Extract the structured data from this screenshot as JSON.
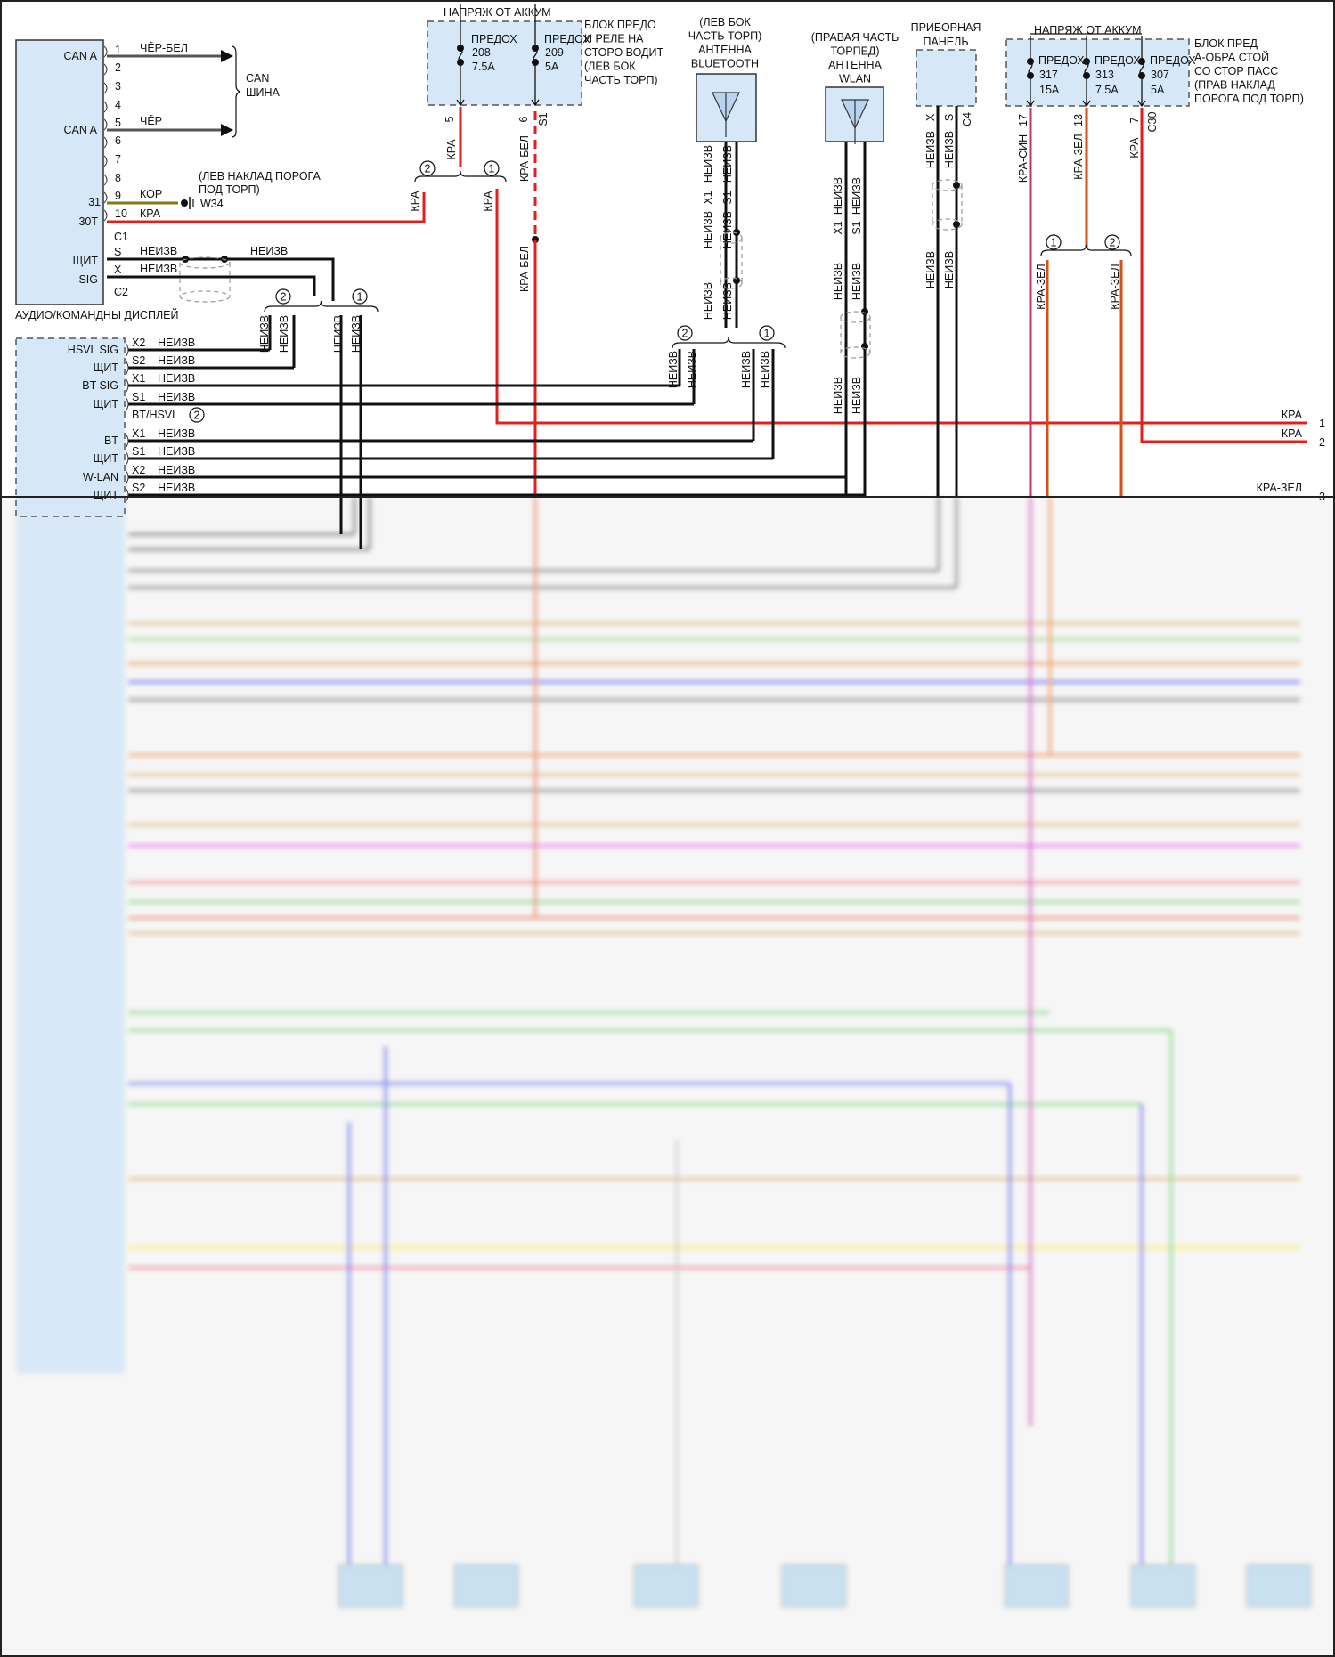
{
  "display_module": {
    "title": "АУДИО/КОМАНДНЫ ДИСПЛЕЙ",
    "pin_labels": [
      "CAN A",
      "CAN A",
      "31",
      "30T",
      "C1",
      "ЩИТ",
      "SIG",
      "C2"
    ],
    "pin_numbers": [
      "1",
      "2",
      "3",
      "4",
      "5",
      "6",
      "7",
      "8",
      "9",
      "10",
      "S",
      "X"
    ],
    "wires": [
      "ЧЁР-БЕЛ",
      "ЧЁР",
      "КОР",
      "КРА",
      "НЕИЗВ",
      "НЕИЗВ",
      "НЕИЗВ"
    ]
  },
  "can_bus": {
    "line1": "CAN",
    "line2": "ШИНА"
  },
  "ground": {
    "location": [
      "(ЛЕВ НАКЛАД ПОРОГА",
      "ПОД ТОРП)"
    ],
    "id": "W34"
  },
  "splice_labels": [
    "1",
    "2"
  ],
  "fuse_block_left": {
    "title": "НАПРЯЖ ОТ АККУМ",
    "fuses": [
      {
        "label": "ПРЕДОХ",
        "number": "208",
        "rating": "7.5A"
      },
      {
        "label": "ПРЕДОХ",
        "number": "209",
        "rating": "5A"
      }
    ],
    "description": [
      "БЛОК ПРЕДО",
      "И РЕЛЕ НА",
      "СТОРО ВОДИТ",
      "(ЛЕВ БОК",
      "ЧАСТЬ ТОРП)"
    ],
    "pins": [
      "5",
      "6",
      "S1"
    ],
    "wires": [
      "КРА",
      "КРА-БЕЛ",
      "КРА-БЕЛ",
      "КРА",
      "КРА"
    ]
  },
  "splice_c2_wires": [
    "НЕИЗВ",
    "НЕИЗВ",
    "НЕИЗВ",
    "НЕИЗВ"
  ],
  "lower_module": {
    "rows": [
      {
        "pin": "HSVL SIG",
        "term": "X2",
        "wire": "НЕИЗВ"
      },
      {
        "pin": "ЩИТ",
        "term": "S2",
        "wire": "НЕИЗВ"
      },
      {
        "pin": "BT SIG",
        "term": "X1",
        "wire": "НЕИЗВ"
      },
      {
        "pin": "ЩИТ",
        "term": "S1",
        "wire": "НЕИЗВ"
      },
      {
        "pin": "",
        "term": "BT/HSVL",
        "wire": ""
      },
      {
        "pin": "BT",
        "term": "X1",
        "wire": "НЕИЗВ"
      },
      {
        "pin": "ЩИТ",
        "term": "S1",
        "wire": "НЕИЗВ"
      },
      {
        "pin": "W-LAN",
        "term": "X2",
        "wire": "НЕИЗВ"
      },
      {
        "pin": "ЩИТ",
        "term": "S2",
        "wire": "НЕИЗВ"
      }
    ]
  },
  "bt_antenna": {
    "title": [
      "(ЛЕВ БОК",
      "ЧАСТЬ ТОРП)",
      "АНТЕННА",
      "BLUETOOTH"
    ],
    "terms": [
      "X1",
      "S1"
    ],
    "wire": "НЕИЗВ",
    "splice_wires": [
      "НЕИЗВ",
      "НЕИЗВ",
      "НЕИЗВ",
      "НЕИЗВ"
    ]
  },
  "wlan_antenna": {
    "title": [
      "(ПРАВАЯ ЧАСТЬ",
      "ТОРПЕД)",
      "АНТЕННА",
      "WLAN"
    ],
    "terms": [
      "X1",
      "S1"
    ],
    "wire": "НЕИЗВ"
  },
  "instrument_panel": {
    "title": [
      "ПРИБОРНАЯ",
      "ПАНЕЛЬ"
    ],
    "terms": [
      "X",
      "S"
    ],
    "connector": "C4",
    "wire": "НЕИЗВ"
  },
  "fuse_block_right": {
    "title": "НАПРЯЖ ОТ АККУМ",
    "fuses": [
      {
        "label": "ПРЕДОХ",
        "number": "317",
        "rating": "15A"
      },
      {
        "label": "ПРЕДОХ",
        "number": "313",
        "rating": "7.5A"
      },
      {
        "label": "ПРЕДОХ",
        "number": "307",
        "rating": "5A"
      }
    ],
    "description": [
      "БЛОК ПРЕД",
      "А-ОБРА СТОЙ",
      "СО СТОР ПАСС",
      "(ПРАВ НАКЛАД",
      "ПОРОГА ПОД ТОРП)"
    ],
    "pins": [
      "17",
      "13",
      "7"
    ],
    "connector": "C30",
    "wires": [
      "КРА-СИН",
      "КРА-ЗЕЛ",
      "КРА",
      "КРА-ЗЕЛ",
      "КРА-ЗЕЛ"
    ]
  },
  "right_edge": [
    {
      "wire": "КРА",
      "pin": "1"
    },
    {
      "wire": "КРА",
      "pin": "2"
    },
    {
      "wire": "КРА-ЗЕЛ",
      "pin": "3"
    }
  ],
  "colors": {
    "module_fill": "#d6e8f8",
    "wire_black": "#111111",
    "wire_red": "#e02020",
    "wire_red_blue": "#c8306a",
    "wire_red_green": "#d2501a",
    "wire_brown": "#857a10",
    "wire_gray": "#555555"
  }
}
